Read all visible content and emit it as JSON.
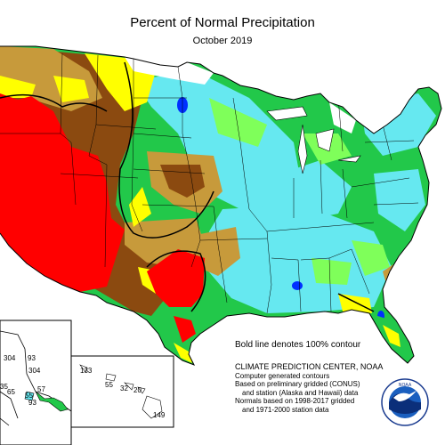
{
  "title": "Percent of Normal Precipitation",
  "subtitle": "October 2019",
  "contour_note": "Bold line denotes 100% contour",
  "credits": [
    "CLIMATE PREDICTION CENTER, NOAA",
    "Computer generated contours",
    "Based on preliminary gridded (CONUS)",
    "and station (Alaska and Hawaii) data",
    "Normals based on 1998-2017 gridded",
    "and 1971-2000 station data"
  ],
  "alaska_values": [
    "304",
    "93",
    "65",
    "55",
    "57",
    "35"
  ],
  "hawaii_values": [
    "133",
    "55",
    "32",
    "20",
    "149"
  ],
  "logo_text": "NOAA",
  "colors": {
    "very_dry": "#ff0000",
    "dry": "#8b4a10",
    "below": "#c79a3b",
    "slightly_below": "#ffff00",
    "near": "#ffffff",
    "slightly_above": "#7fff5a",
    "above": "#22c84a",
    "wet": "#66e8f0",
    "very_wet": "#0030ff"
  }
}
